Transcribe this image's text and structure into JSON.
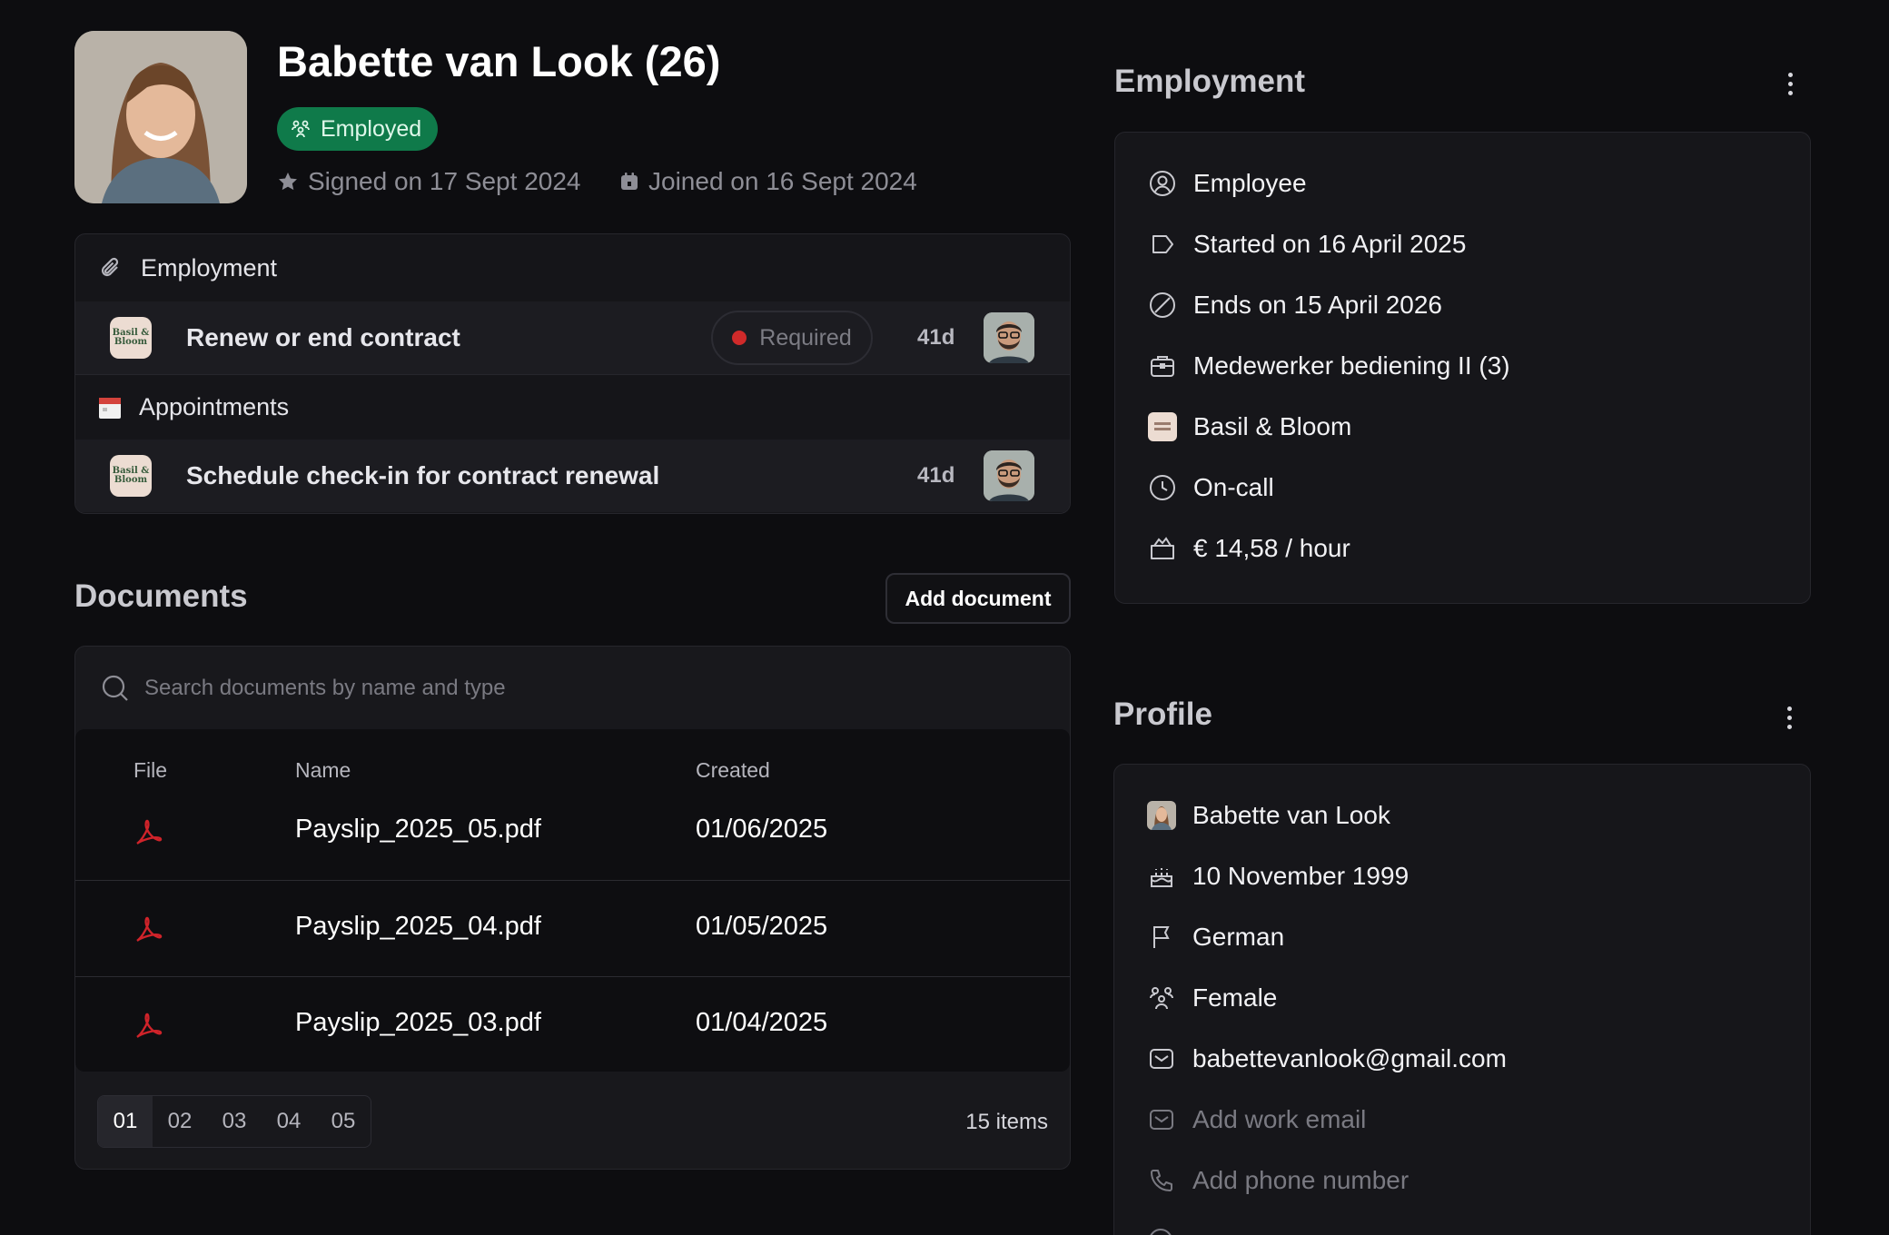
{
  "header": {
    "name": "Babette van Look (26)",
    "status": "Employed",
    "signed": "Signed on 17 Sept 2024",
    "joined": "Joined on 16 Sept 2024"
  },
  "tasks": {
    "groups": [
      {
        "title": "Employment",
        "icon": "paperclip-icon",
        "task": {
          "title": "Renew or end contract",
          "badge": "Required",
          "days": "41d",
          "company_logo_text": "Basil & Bloom"
        }
      },
      {
        "title": "Appointments",
        "icon": "calendar-icon",
        "task": {
          "title": "Schedule check-in for contract renewal",
          "days": "41d",
          "company_logo_text": "Basil & Bloom"
        }
      }
    ]
  },
  "documents": {
    "title": "Documents",
    "add_button": "Add document",
    "search_placeholder": "Search documents by name and type",
    "columns": [
      "File",
      "Name",
      "Created"
    ],
    "rows": [
      {
        "name": "Payslip_2025_05.pdf",
        "created": "01/06/2025",
        "file_icon": "pdf-icon"
      },
      {
        "name": "Payslip_2025_04.pdf",
        "created": "01/05/2025",
        "file_icon": "pdf-icon"
      },
      {
        "name": "Payslip_2025_03.pdf",
        "created": "01/04/2025",
        "file_icon": "pdf-icon"
      }
    ],
    "pages": [
      "01",
      "02",
      "03",
      "04",
      "05"
    ],
    "active_page": "01",
    "item_count": "15 items"
  },
  "employment": {
    "title": "Employment",
    "items": [
      {
        "icon": "user-circle-icon",
        "text": "Employee"
      },
      {
        "icon": "tag-icon",
        "text": "Started on 16 April 2025"
      },
      {
        "icon": "ban-icon",
        "text": "Ends on 15 April 2026"
      },
      {
        "icon": "briefcase-icon",
        "text": "Medewerker bediening II (3)"
      },
      {
        "icon": "company-logo-icon",
        "text": "Basil & Bloom"
      },
      {
        "icon": "clock-icon",
        "text": "On-call"
      },
      {
        "icon": "wallet-icon",
        "text": "€ 14,58 / hour"
      }
    ]
  },
  "profile": {
    "title": "Profile",
    "items": [
      {
        "icon": "avatar-icon",
        "text": "Babette van Look"
      },
      {
        "icon": "cake-icon",
        "text": "10 November 1999"
      },
      {
        "icon": "flag-icon",
        "text": "German"
      },
      {
        "icon": "gender-icon",
        "text": "Female"
      },
      {
        "icon": "mail-icon",
        "text": "babettevanlook@gmail.com"
      },
      {
        "icon": "mail-icon",
        "text": "Add work email"
      },
      {
        "icon": "phone-icon",
        "text": "Add phone number"
      }
    ]
  },
  "colors": {
    "background": "#0d0d10",
    "status_green": "#0f7a4a",
    "required_red": "#d02a2a",
    "pdf_red": "#d0232a"
  }
}
